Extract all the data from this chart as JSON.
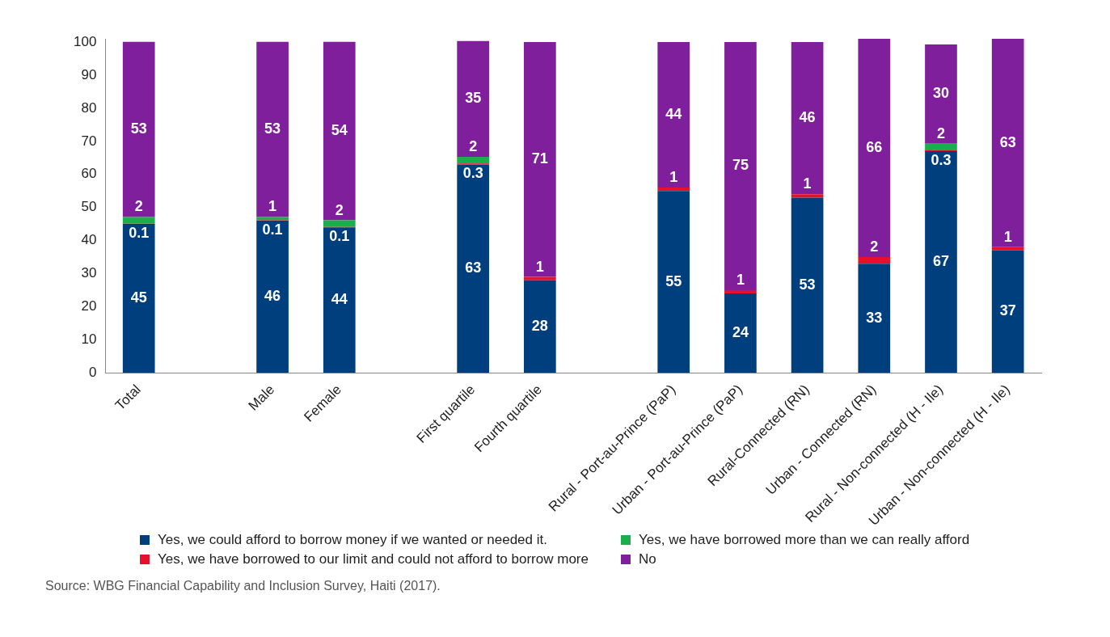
{
  "chart_data": {
    "type": "bar",
    "stacked": true,
    "data_labels": true,
    "grid": false,
    "legend": "bottom",
    "categories": [
      "Total",
      null,
      "Male",
      "Female",
      null,
      "First quartile",
      "Fourth quartile",
      null,
      "Rural - Port-au-Prince (PaP)",
      "Urban - Port-au-Prince (PaP)",
      "Rural-Connected (RN)",
      "Urban - Connected (RN)",
      "Rural - Non-connected (H - Ile)",
      "Urban - Non-connected (H - Ile)"
    ],
    "ylim": [
      0,
      101
    ],
    "yticks": [
      0,
      10,
      20,
      30,
      40,
      50,
      60,
      70,
      80,
      90,
      100
    ],
    "series": [
      {
        "name": "Yes, we could afford to borrow money if we wanted or needed it.",
        "color": "#003f7d",
        "values": [
          45,
          null,
          46,
          44,
          null,
          63,
          28,
          null,
          55,
          24,
          53,
          33,
          67,
          37
        ]
      },
      {
        "name": "Yes, we have borrowed to our limit and could not afford to borrow more",
        "color": "#e8112d",
        "values": [
          0.1,
          null,
          0.1,
          0.1,
          null,
          0.3,
          1,
          null,
          1,
          1,
          1,
          2,
          0.3,
          1
        ]
      },
      {
        "name": "Yes, we have borrowed more than we can really afford",
        "color": "#19b04b",
        "values": [
          2,
          null,
          1,
          2,
          null,
          2,
          null,
          null,
          null,
          null,
          null,
          null,
          2,
          null
        ]
      },
      {
        "name": "No",
        "color": "#7f1f9b",
        "values": [
          53,
          null,
          53,
          54,
          null,
          35,
          71,
          null,
          44,
          75,
          46,
          66,
          30,
          63
        ]
      }
    ],
    "annotations": [
      "Source: WBG Financial Capability and Inclusion Survey, Haiti (2017)."
    ]
  }
}
